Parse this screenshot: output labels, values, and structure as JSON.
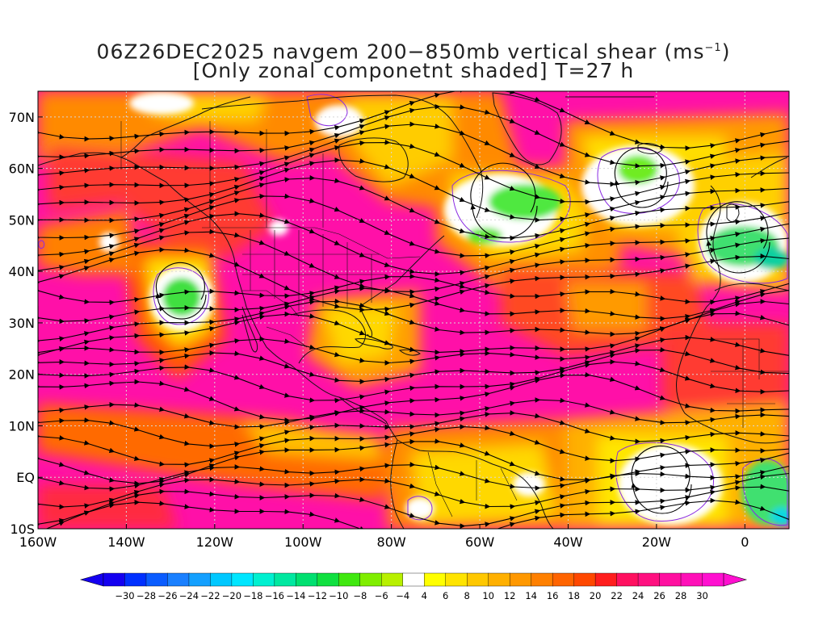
{
  "title": {
    "line1_prefix": "06Z26DEC2025 navgem 200−850mb vertical shear (ms",
    "line1_sup": "−1",
    "line1_suffix": ")",
    "line2": "[Only zonal componetnt shaded] T=27 h"
  },
  "lat_labels": [
    "70N",
    "60N",
    "50N",
    "40N",
    "30N",
    "20N",
    "10N",
    "EQ",
    "10S"
  ],
  "lon_labels": [
    "160W",
    "140W",
    "120W",
    "100W",
    "80W",
    "60W",
    "40W",
    "20W",
    "0"
  ],
  "colorbar": {
    "labels": [
      "−30",
      "−28",
      "−26",
      "−24",
      "−22",
      "−20",
      "−18",
      "−16",
      "−14",
      "−12",
      "−10",
      "−8",
      "−6",
      "−4",
      "4",
      "6",
      "8",
      "10",
      "12",
      "14",
      "16",
      "18",
      "20",
      "22",
      "24",
      "26",
      "28",
      "30"
    ],
    "colors": [
      "#1400f0",
      "#0030ff",
      "#0a5cff",
      "#1a80ff",
      "#14a0ff",
      "#00c8ff",
      "#00e6ff",
      "#00f0d0",
      "#00e8a0",
      "#00e070",
      "#10e040",
      "#40e810",
      "#80ee00",
      "#b8f000",
      "#ffffff",
      "#ffff00",
      "#ffe400",
      "#ffc800",
      "#ffb000",
      "#ff9800",
      "#ff8000",
      "#ff6400",
      "#ff4800",
      "#ff1e1e",
      "#ff1060",
      "#ff1080",
      "#ff10a0",
      "#ff10b8",
      "#ff10d0"
    ]
  },
  "colors": {
    "shear_max": "#ff10a8",
    "shear_high": "#ff2050",
    "shear_mid": "#ff8c00",
    "shear_low": "#ffd200",
    "calm": "#ffffff",
    "easterly": "#50e840",
    "contour": "#8a2be2",
    "coast": "#111111"
  }
}
